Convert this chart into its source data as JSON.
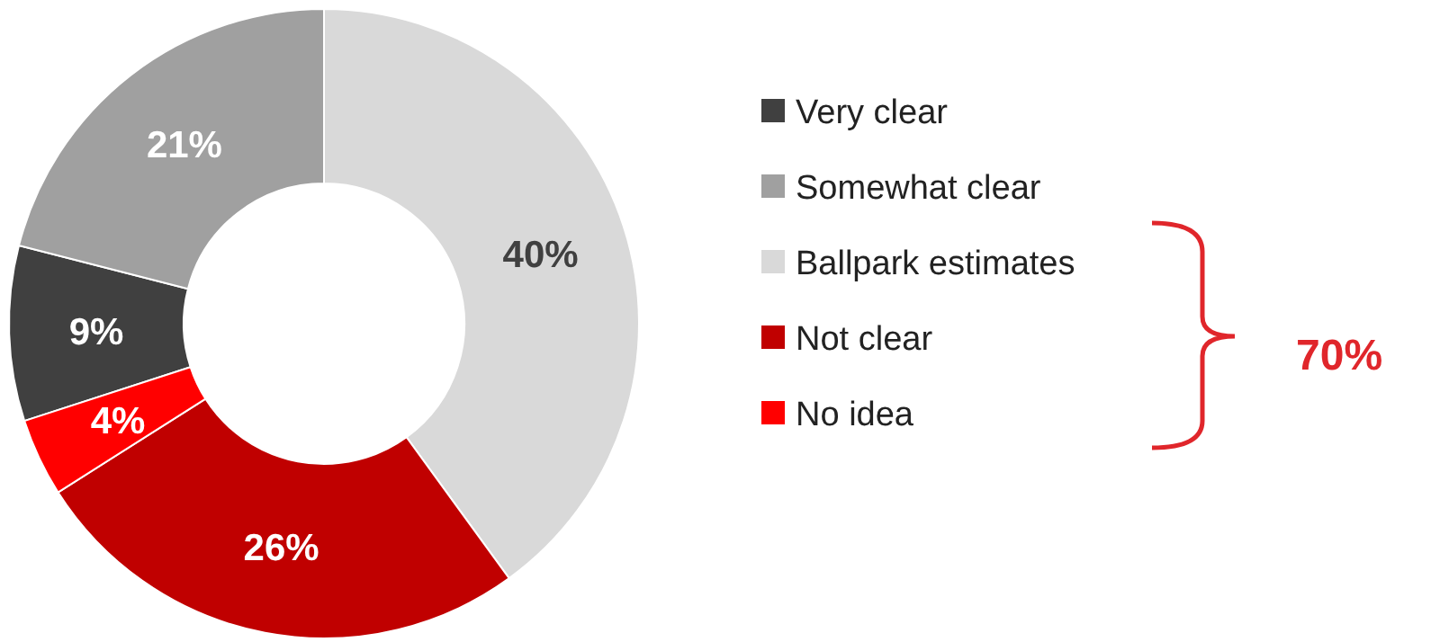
{
  "chart_data": {
    "type": "donut",
    "categories": [
      "Very clear",
      "Somewhat clear",
      "Ballpark estimates",
      "Not clear",
      "No idea"
    ],
    "values": [
      9,
      21,
      40,
      26,
      4
    ],
    "colors": [
      "#404040",
      "#a0a0a0",
      "#d9d9d9",
      "#c00000",
      "#ff0000"
    ],
    "value_labels": [
      "9%",
      "21%",
      "40%",
      "26%",
      "4%"
    ],
    "legend": "right",
    "annotations": [
      "70%"
    ]
  }
}
